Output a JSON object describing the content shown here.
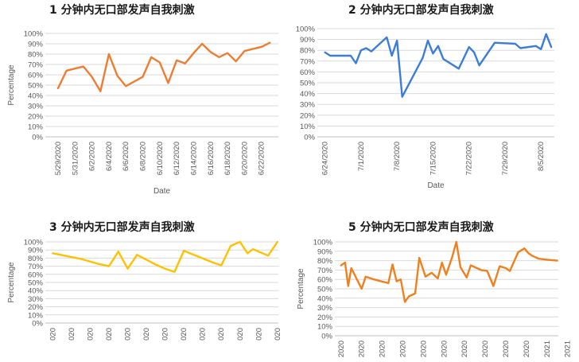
{
  "chart_data": [
    {
      "type": "line",
      "title": "1 分钟内无口部发声自我刺激",
      "ylabel": "Percentage",
      "xlabel": "Date",
      "color": "#ED7D31",
      "ylim": [
        0,
        100
      ],
      "yticks": [
        "0%",
        "10%",
        "20%",
        "30%",
        "40%",
        "50%",
        "60%",
        "70%",
        "80%",
        "90%",
        "100%"
      ],
      "xticks": [
        "5/29/2020",
        "5/31/2020",
        "6/2/2020",
        "6/4/2020",
        "6/6/2020",
        "6/8/2020",
        "6/10/2020",
        "6/12/2020",
        "6/14/2020",
        "6/16/2020",
        "6/18/2020",
        "6/20/2020",
        "6/22/2020"
      ],
      "x": [
        "2020-05-29",
        "2020-05-30",
        "2020-06-01",
        "2020-06-02",
        "2020-06-03",
        "2020-06-04",
        "2020-06-05",
        "2020-06-06",
        "2020-06-08",
        "2020-06-09",
        "2020-06-10",
        "2020-06-11",
        "2020-06-12",
        "2020-06-13",
        "2020-06-14",
        "2020-06-15",
        "2020-06-16",
        "2020-06-17",
        "2020-06-18",
        "2020-06-19",
        "2020-06-20",
        "2020-06-22",
        "2020-06-23"
      ],
      "values": [
        47,
        64,
        68,
        58,
        44,
        80,
        59,
        49,
        58,
        77,
        72,
        52,
        74,
        71,
        81,
        90,
        82,
        77,
        81,
        73,
        83,
        87,
        91
      ]
    },
    {
      "type": "line",
      "title": "2 分钟内无口部发声自我刺激",
      "ylabel": "Percentage",
      "xlabel": "Date",
      "color": "#3B7DD8",
      "ylim": [
        0,
        100
      ],
      "yticks": [
        "0%",
        "10%",
        "20%",
        "30%",
        "40%",
        "50%",
        "60%",
        "70%",
        "80%",
        "90%",
        "100%"
      ],
      "xticks": [
        "6/24/2020",
        "7/1/2020",
        "7/8/2020",
        "7/15/2020",
        "7/22/2020",
        "7/29/2020",
        "8/5/2020"
      ],
      "x": [
        "2020-06-24",
        "2020-06-25",
        "2020-06-29",
        "2020-06-30",
        "2020-07-01",
        "2020-07-02",
        "2020-07-03",
        "2020-07-06",
        "2020-07-07",
        "2020-07-08",
        "2020-07-09",
        "2020-07-13",
        "2020-07-14",
        "2020-07-15",
        "2020-07-16",
        "2020-07-17",
        "2020-07-20",
        "2020-07-22",
        "2020-07-23",
        "2020-07-24",
        "2020-07-27",
        "2020-07-31",
        "2020-08-01",
        "2020-08-04",
        "2020-08-05",
        "2020-08-06",
        "2020-08-07"
      ],
      "values": [
        78,
        75,
        75,
        68,
        80,
        82,
        79,
        92,
        75,
        89,
        37,
        73,
        89,
        77,
        84,
        72,
        63,
        83,
        78,
        66,
        87,
        86,
        82,
        84,
        81,
        95,
        83
      ]
    },
    {
      "type": "line",
      "title": "3 分钟内无口部发声自我刺激",
      "ylabel": "Percentage",
      "xlabel": "",
      "color": "#FFC000",
      "ylim": [
        0,
        100
      ],
      "yticks": [
        "0%",
        "10%",
        "20%",
        "30%",
        "40%",
        "50%",
        "60%",
        "70%",
        "80%",
        "90%",
        "100%"
      ],
      "xticks": [
        "020",
        "020",
        "020",
        "020",
        "020",
        "020",
        "020",
        "020",
        "020",
        "020",
        "020",
        "020",
        "020"
      ],
      "x": [
        0,
        1.5,
        2.4,
        3,
        3.5,
        4,
        4.5,
        5.5,
        6,
        6.5,
        7,
        8.5,
        9,
        9.5,
        10,
        10.4,
        10.7,
        11.5,
        12
      ],
      "values": [
        86,
        79,
        73,
        70,
        88,
        67,
        84,
        72,
        67,
        63,
        89,
        75,
        71,
        95,
        100,
        86,
        91,
        83,
        100
      ]
    },
    {
      "type": "line",
      "title": "5 分钟内无口部发声自我刺激",
      "ylabel": "Percentage",
      "xlabel": "",
      "color": "#F07F1E",
      "ylim": [
        0,
        100
      ],
      "yticks": [
        "0%",
        "10%",
        "20%",
        "30%",
        "40%",
        "50%",
        "60%",
        "70%",
        "80%",
        "90%",
        "100%"
      ],
      "xticks": [
        "2020",
        "2020",
        "2020",
        "2020",
        "2020",
        "2020",
        "2020",
        "2020",
        "2020",
        "2020",
        "2021",
        "2021"
      ],
      "x": [
        0,
        0.2,
        0.35,
        0.5,
        1,
        1.2,
        1.6,
        2.3,
        2.5,
        2.7,
        2.9,
        3.1,
        3.3,
        3.6,
        3.8,
        4.1,
        4.4,
        4.7,
        4.9,
        5.1,
        5.4,
        5.6,
        5.8,
        6.1,
        6.3,
        6.6,
        6.8,
        7.1,
        7.4,
        7.7,
        8,
        8.2,
        8.6,
        8.9,
        9.1,
        9.3,
        9.6,
        10,
        10.5
      ],
      "values": [
        75,
        78,
        53,
        72,
        50,
        63,
        60,
        56,
        76,
        58,
        60,
        36,
        42,
        45,
        83,
        63,
        67,
        61,
        78,
        65,
        84,
        100,
        73,
        62,
        75,
        72,
        70,
        69,
        53,
        74,
        72,
        69,
        89,
        93,
        88,
        85,
        82,
        81,
        80
      ]
    }
  ]
}
